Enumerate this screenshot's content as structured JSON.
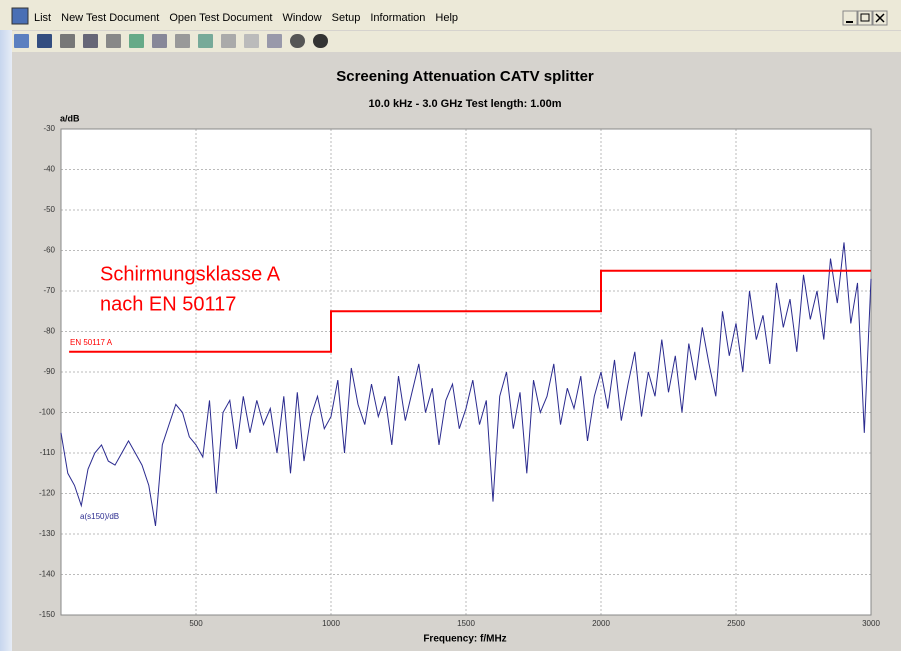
{
  "menu": [
    "List",
    "New Test Document",
    "Open Test Document",
    "Window",
    "Setup",
    "Information",
    "Help"
  ],
  "chart_data": {
    "type": "line",
    "title": "Screening Attenuation    CATV splitter",
    "subtitle": "10.0 kHz - 3.0 GHz   Test length: 1.00m",
    "y_label": "a/dB",
    "x_label": "Frequency: f/MHz",
    "annotations": [
      "Schirmungsklasse A",
      "nach EN 50117"
    ],
    "xlim": [
      0,
      3000
    ],
    "xticks": [
      500,
      1000,
      1500,
      2000,
      2500,
      3000
    ],
    "ylim": [
      -150,
      -30
    ],
    "yticks": [
      -30,
      -40,
      -50,
      -60,
      -70,
      -80,
      -90,
      -100,
      -110,
      -120,
      -130,
      -140,
      -150
    ],
    "grid": true,
    "series": [
      {
        "name": "a(s150)/dB",
        "color": "#2b2b8f",
        "x": [
          0,
          25,
          50,
          75,
          100,
          125,
          150,
          175,
          200,
          225,
          250,
          275,
          300,
          325,
          350,
          375,
          400,
          425,
          450,
          475,
          500,
          525,
          550,
          575,
          600,
          625,
          650,
          675,
          700,
          725,
          750,
          775,
          800,
          825,
          850,
          875,
          900,
          925,
          950,
          975,
          1000,
          1025,
          1050,
          1075,
          1100,
          1125,
          1150,
          1175,
          1200,
          1225,
          1250,
          1275,
          1300,
          1325,
          1350,
          1375,
          1400,
          1425,
          1450,
          1475,
          1500,
          1525,
          1550,
          1575,
          1600,
          1625,
          1650,
          1675,
          1700,
          1725,
          1750,
          1775,
          1800,
          1825,
          1850,
          1875,
          1900,
          1925,
          1950,
          1975,
          2000,
          2025,
          2050,
          2075,
          2100,
          2125,
          2150,
          2175,
          2200,
          2225,
          2250,
          2275,
          2300,
          2325,
          2350,
          2375,
          2400,
          2425,
          2450,
          2475,
          2500,
          2525,
          2550,
          2575,
          2600,
          2625,
          2650,
          2675,
          2700,
          2725,
          2750,
          2775,
          2800,
          2825,
          2850,
          2875,
          2900,
          2925,
          2950,
          2975,
          3000
        ],
        "values": [
          -105,
          -115,
          -118,
          -123,
          -114,
          -110,
          -108,
          -112,
          -113,
          -110,
          -107,
          -110,
          -113,
          -118,
          -128,
          -108,
          -103,
          -98,
          -100,
          -106,
          -108,
          -111,
          -97,
          -120,
          -100,
          -97,
          -109,
          -96,
          -105,
          -97,
          -103,
          -99,
          -110,
          -96,
          -115,
          -95,
          -112,
          -101,
          -96,
          -104,
          -101,
          -92,
          -110,
          -89,
          -98,
          -103,
          -93,
          -101,
          -96,
          -108,
          -91,
          -102,
          -95,
          -88,
          -100,
          -94,
          -108,
          -97,
          -93,
          -104,
          -99,
          -92,
          -103,
          -97,
          -122,
          -96,
          -90,
          -104,
          -95,
          -115,
          -92,
          -100,
          -96,
          -88,
          -103,
          -94,
          -99,
          -91,
          -107,
          -96,
          -90,
          -99,
          -87,
          -102,
          -93,
          -85,
          -101,
          -90,
          -96,
          -82,
          -95,
          -86,
          -100,
          -83,
          -92,
          -79,
          -88,
          -96,
          -75,
          -86,
          -78,
          -90,
          -70,
          -82,
          -76,
          -88,
          -68,
          -79,
          -72,
          -85,
          -66,
          -77,
          -70,
          -82,
          -62,
          -73,
          -58,
          -78,
          -68,
          -105,
          -67
        ]
      },
      {
        "name": "EN 50117 A",
        "color": "#ff0000",
        "x": [
          30,
          1000,
          1000,
          2000,
          2000,
          3000
        ],
        "values": [
          -85,
          -85,
          -75,
          -75,
          -65,
          -65
        ]
      }
    ]
  }
}
